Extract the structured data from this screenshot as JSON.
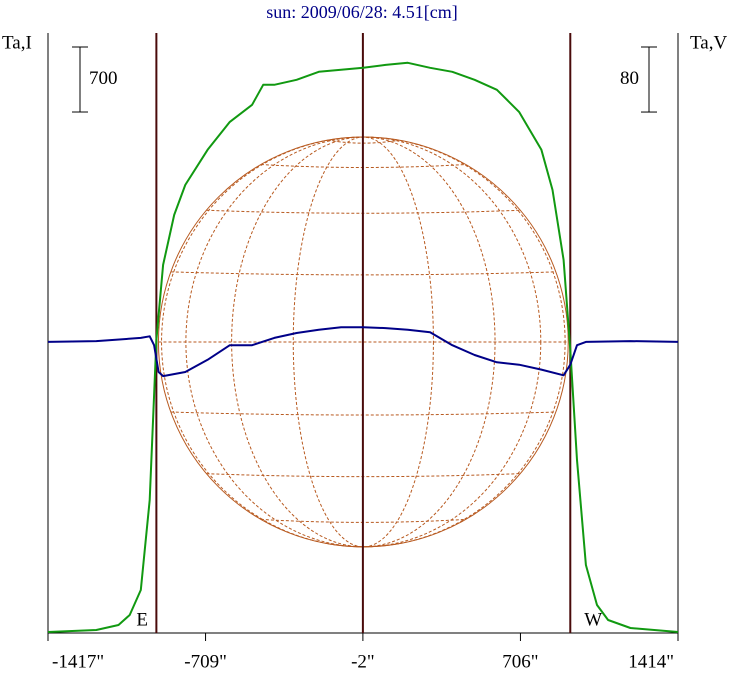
{
  "chart_data": {
    "type": "line",
    "title": "sun: 2009/06/28: 4.51[cm]",
    "y_label": "Ta,I",
    "y2_label": "Ta,V",
    "xlim": [
      -1417,
      1414
    ],
    "xticks": [
      {
        "value": -1417,
        "label": "-1417\""
      },
      {
        "value": -709,
        "label": "-709\""
      },
      {
        "value": -2,
        "label": "-2\""
      },
      {
        "value": 706,
        "label": "706\""
      },
      {
        "value": 1414,
        "label": "1414\""
      }
    ],
    "ylim": [
      0,
      6460
    ],
    "y2lim": [
      -358,
      380
    ],
    "scale_bars": [
      700,
      80
    ],
    "limb_lines": [
      -930,
      -2,
      930
    ],
    "limb_labels": [
      "E",
      "W"
    ],
    "series": [
      {
        "name": "Ta,I",
        "color": "#119911",
        "x": [
          -1417,
          -1200,
          -1100,
          -1050,
          -1000,
          -960,
          -930,
          -900,
          -850,
          -800,
          -700,
          -600,
          -500,
          -450,
          -400,
          -300,
          -200,
          -100,
          0,
          100,
          200,
          300,
          400,
          500,
          600,
          700,
          800,
          850,
          900,
          930,
          960,
          1000,
          1050,
          1100,
          1200,
          1414
        ],
        "values": [
          11,
          32,
          86,
          194,
          463,
          1432,
          3156,
          3963,
          4502,
          4825,
          5202,
          5503,
          5687,
          5902,
          5902,
          5956,
          6042,
          6064,
          6085,
          6117,
          6139,
          6085,
          6042,
          5956,
          5848,
          5611,
          5202,
          4771,
          4017,
          3048,
          1863,
          732,
          302,
          140,
          54,
          11
        ]
      },
      {
        "name": "Ta,V",
        "color": "#000088",
        "axis": "y2",
        "x": [
          -1417,
          -1200,
          -1000,
          -960,
          -940,
          -920,
          -900,
          -800,
          -700,
          -600,
          -500,
          -400,
          -300,
          -200,
          -100,
          0,
          100,
          200,
          300,
          400,
          500,
          600,
          700,
          800,
          900,
          930,
          960,
          1000,
          1200,
          1414
        ],
        "values": [
          0,
          1,
          5,
          7,
          -4,
          -37,
          -42,
          -37,
          -22,
          -4,
          -4,
          5,
          11,
          15,
          18,
          18,
          17,
          15,
          12,
          -4,
          -16,
          -25,
          -28,
          -34,
          -41,
          -28,
          -4,
          0,
          1,
          0
        ]
      }
    ]
  }
}
